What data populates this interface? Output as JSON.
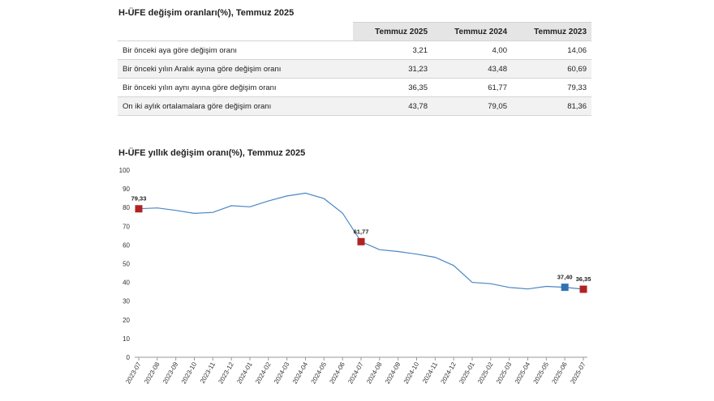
{
  "table": {
    "title": "H-ÜFE değişim oranları(%), Temmuz 2025",
    "columns": [
      "",
      "Temmuz 2025",
      "Temmuz 2024",
      "Temmuz 2023"
    ],
    "rows": [
      {
        "label": "Bir önceki aya göre değişim oranı",
        "values": [
          "3,21",
          "4,00",
          "14,06"
        ]
      },
      {
        "label": "Bir önceki yılın Aralık ayına göre değişim oranı",
        "values": [
          "31,23",
          "43,48",
          "60,69"
        ]
      },
      {
        "label": "Bir önceki yılın aynı ayına göre değişim oranı",
        "values": [
          "36,35",
          "61,77",
          "79,33"
        ]
      },
      {
        "label": "On iki aylık ortalamalara göre değişim oranı",
        "values": [
          "43,78",
          "79,05",
          "81,36"
        ]
      }
    ]
  },
  "chart_data": {
    "type": "line",
    "title": "H-ÜFE yıllık değişim oranı(%), Temmuz 2025",
    "xlabel": "",
    "ylabel": "",
    "ylim": [
      0,
      100
    ],
    "yticks": [
      0,
      10,
      20,
      30,
      40,
      50,
      60,
      70,
      80,
      90,
      100
    ],
    "grid": false,
    "categories": [
      "2023-07",
      "2023-08",
      "2023-09",
      "2023-10",
      "2023-11",
      "2023-12",
      "2024-01",
      "2024-02",
      "2024-03",
      "2024-04",
      "2024-05",
      "2024-06",
      "2024-07",
      "2024-08",
      "2024-09",
      "2024-10",
      "2024-11",
      "2024-12",
      "2025-01",
      "2025-02",
      "2025-03",
      "2025-04",
      "2025-05",
      "2025-06",
      "2025-07"
    ],
    "series": [
      {
        "values": [
          79.33,
          79.8,
          78.5,
          76.9,
          77.4,
          81.0,
          80.4,
          83.5,
          86.2,
          87.7,
          84.8,
          77.0,
          61.77,
          57.5,
          56.5,
          55.1,
          53.4,
          49.0,
          40.0,
          39.3,
          37.3,
          36.5,
          37.9,
          37.4,
          36.35
        ],
        "color": "#4a86c5"
      }
    ],
    "markers": [
      {
        "index": 0,
        "label": "79,33",
        "color": "#b22222"
      },
      {
        "index": 12,
        "label": "61,77",
        "color": "#b22222"
      },
      {
        "index": 23,
        "label": "37,40",
        "color": "#2f73b3"
      },
      {
        "index": 24,
        "label": "36,35",
        "color": "#b22222"
      }
    ]
  }
}
